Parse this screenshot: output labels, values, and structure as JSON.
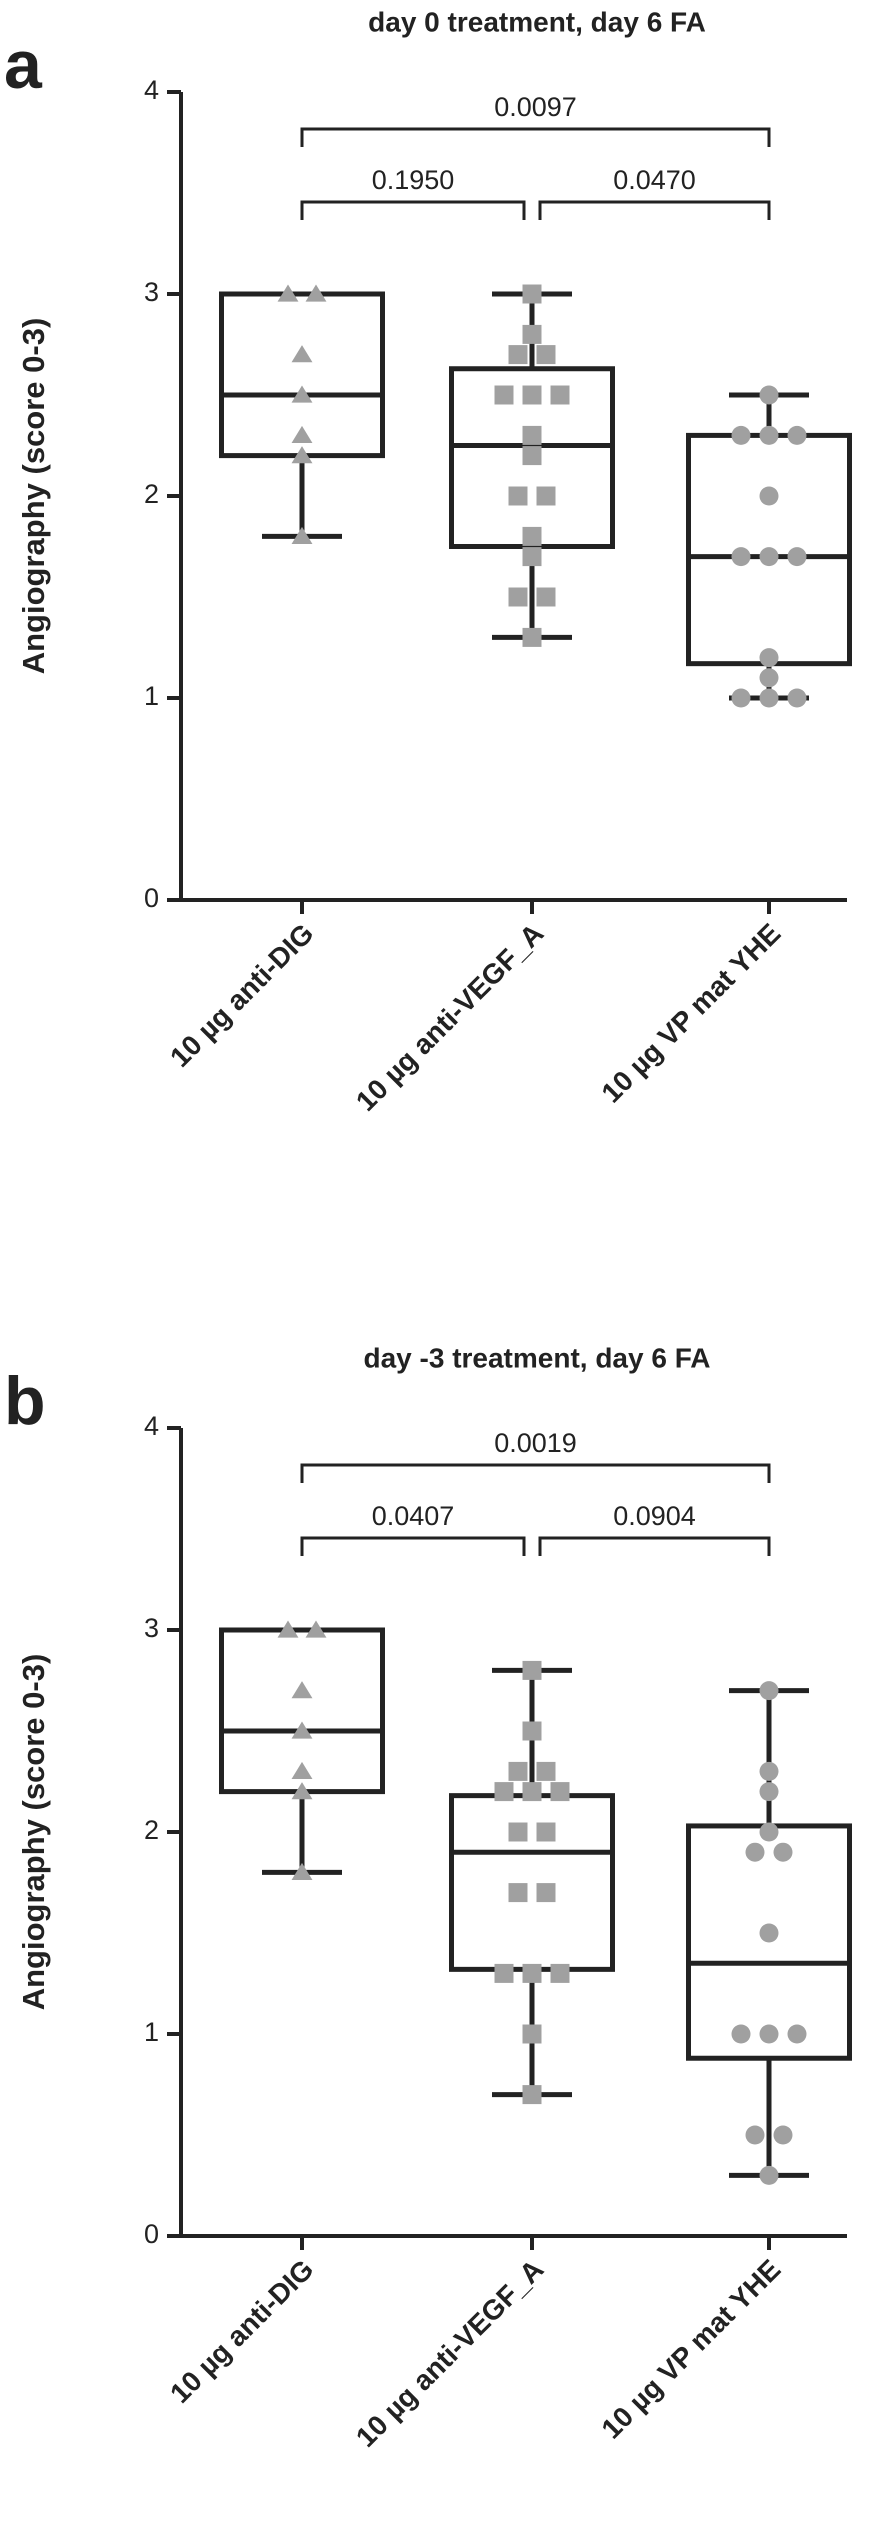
{
  "chart_data": [
    {
      "type": "box",
      "panel": "a",
      "title": "day 0 treatment, day 6 FA",
      "ylabel": "Angiography (score 0-3)",
      "categories": [
        "10 µg anti-DIG",
        "10 µg anti-VEGF_A",
        "10 µg VP mat YHE"
      ],
      "ylim": [
        0,
        4
      ],
      "yticks": [
        0,
        1,
        2,
        3,
        4
      ],
      "markers": [
        "triangle",
        "square",
        "circle"
      ],
      "point_color": "#a0a0a0",
      "box_color": "#222222",
      "boxes": [
        {
          "min": 1.8,
          "q1": 2.2,
          "median": 2.5,
          "q3": 3.0,
          "max": 3.0
        },
        {
          "min": 1.3,
          "q1": 1.75,
          "median": 2.25,
          "q3": 2.63,
          "max": 3.0
        },
        {
          "min": 1.0,
          "q1": 1.17,
          "median": 1.7,
          "q3": 2.3,
          "max": 2.5
        }
      ],
      "points": [
        [
          3.0,
          3.0,
          2.7,
          2.5,
          2.3,
          2.2,
          1.8
        ],
        [
          3.0,
          2.8,
          2.7,
          2.7,
          2.5,
          2.5,
          2.5,
          2.3,
          2.2,
          2.0,
          2.0,
          1.8,
          1.7,
          1.5,
          1.5,
          1.3
        ],
        [
          2.5,
          2.3,
          2.3,
          2.3,
          2.0,
          1.7,
          1.7,
          1.7,
          1.2,
          1.1,
          1.0,
          1.0,
          1.0
        ]
      ],
      "comparisons": [
        {
          "between": [
            0,
            2
          ],
          "label": "0.0097"
        },
        {
          "between": [
            0,
            1
          ],
          "label": "0.1950"
        },
        {
          "between": [
            1,
            2
          ],
          "label": "0.0470"
        }
      ]
    },
    {
      "type": "box",
      "panel": "b",
      "title": "day -3 treatment, day 6 FA",
      "ylabel": "Angiography (score 0-3)",
      "categories": [
        "10 µg anti-DIG",
        "10 µg anti-VEGF_A",
        "10 µg VP mat YHE"
      ],
      "ylim": [
        0,
        4
      ],
      "yticks": [
        0,
        1,
        2,
        3,
        4
      ],
      "markers": [
        "triangle",
        "square",
        "circle"
      ],
      "point_color": "#a0a0a0",
      "box_color": "#222222",
      "boxes": [
        {
          "min": 1.8,
          "q1": 2.2,
          "median": 2.5,
          "q3": 3.0,
          "max": 3.0
        },
        {
          "min": 0.7,
          "q1": 1.32,
          "median": 1.9,
          "q3": 2.18,
          "max": 2.8
        },
        {
          "min": 0.3,
          "q1": 0.88,
          "median": 1.35,
          "q3": 2.03,
          "max": 2.7
        }
      ],
      "points": [
        [
          3.0,
          3.0,
          2.7,
          2.5,
          2.3,
          2.2,
          1.8
        ],
        [
          2.8,
          2.5,
          2.3,
          2.3,
          2.2,
          2.2,
          2.2,
          2.0,
          2.0,
          1.7,
          1.7,
          1.3,
          1.3,
          1.3,
          1.0,
          0.7
        ],
        [
          2.7,
          2.3,
          2.2,
          2.0,
          1.9,
          1.9,
          1.5,
          1.0,
          1.0,
          1.0,
          0.5,
          0.5,
          0.3
        ]
      ],
      "comparisons": [
        {
          "between": [
            0,
            2
          ],
          "label": "0.0019"
        },
        {
          "between": [
            0,
            1
          ],
          "label": "0.0407"
        },
        {
          "between": [
            1,
            2
          ],
          "label": "0.0904"
        }
      ]
    }
  ]
}
